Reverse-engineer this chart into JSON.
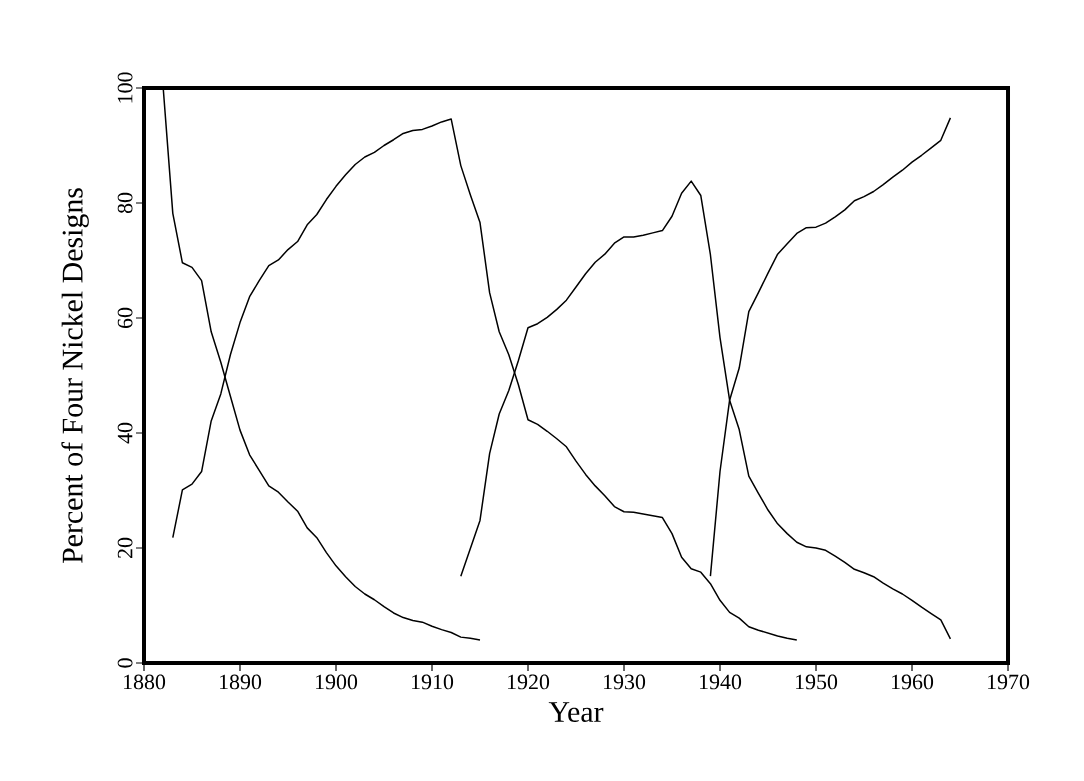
{
  "chart_data": {
    "type": "line",
    "xlabel": "Year",
    "ylabel": "Percent of Four Nickel Designs",
    "xlim": [
      1880,
      1970
    ],
    "ylim": [
      0,
      100
    ],
    "xticks": [
      1880,
      1890,
      1900,
      1910,
      1920,
      1930,
      1940,
      1950,
      1960,
      1970
    ],
    "yticks": [
      0,
      20,
      40,
      60,
      80,
      100
    ],
    "marker": "none",
    "line_style": "solid",
    "series": [
      {
        "color": "#000000",
        "x": [
          1882,
          1883,
          1884,
          1885,
          1886,
          1887,
          1888,
          1889,
          1890,
          1891,
          1892,
          1893,
          1894,
          1895,
          1896,
          1897,
          1898,
          1899,
          1900,
          1901,
          1902,
          1903,
          1904,
          1905,
          1906,
          1907,
          1908,
          1909,
          1910,
          1911,
          1912,
          1913,
          1914,
          1915
        ],
        "values": [
          100,
          78.2,
          69.6,
          68.8,
          66.5,
          57.6,
          52.3,
          46.4,
          40.5,
          36.2,
          33.5,
          30.8,
          29.7,
          28.0,
          26.4,
          23.5,
          21.8,
          19.2,
          16.9,
          15.0,
          13.3,
          12.0,
          11.0,
          9.8,
          8.7,
          7.9,
          7.4,
          7.1,
          6.4,
          5.8,
          5.3,
          4.5,
          4.3,
          4.0
        ]
      },
      {
        "color": "#000000",
        "x": [
          1883,
          1884,
          1885,
          1886,
          1887,
          1888,
          1889,
          1890,
          1891,
          1892,
          1893,
          1894,
          1895,
          1896,
          1897,
          1898,
          1899,
          1900,
          1901,
          1902,
          1903,
          1904,
          1905,
          1906,
          1907,
          1908,
          1909,
          1910,
          1911,
          1912,
          1913,
          1914,
          1915,
          1916,
          1917,
          1918,
          1919,
          1920,
          1921,
          1922,
          1923,
          1924,
          1925,
          1926,
          1927,
          1928,
          1929,
          1930,
          1931,
          1932,
          1933,
          1934,
          1935,
          1936,
          1937,
          1938,
          1939,
          1940,
          1941,
          1942,
          1943,
          1944,
          1945,
          1946,
          1947,
          1948
        ],
        "values": [
          21.8,
          30.1,
          31.1,
          33.3,
          42.1,
          46.8,
          53.6,
          59.2,
          63.7,
          66.5,
          69.1,
          70.1,
          71.9,
          73.3,
          76.2,
          78.0,
          80.6,
          82.9,
          84.9,
          86.7,
          88.0,
          88.8,
          90.0,
          91.0,
          92.1,
          92.6,
          92.8,
          93.4,
          94.1,
          94.6,
          86.5,
          81.4,
          76.6,
          64.4,
          57.6,
          53.6,
          48.4,
          42.3,
          41.5,
          40.3,
          39.0,
          37.6,
          35.1,
          32.8,
          30.8,
          29.1,
          27.2,
          26.3,
          26.2,
          25.9,
          25.6,
          25.3,
          22.5,
          18.4,
          16.4,
          15.8,
          13.8,
          10.9,
          8.8,
          7.8,
          6.3,
          5.7,
          5.2,
          4.7,
          4.3,
          4.0
        ]
      },
      {
        "color": "#000000",
        "x": [
          1913,
          1915,
          1916,
          1917,
          1918,
          1919,
          1920,
          1921,
          1922,
          1923,
          1924,
          1925,
          1926,
          1927,
          1928,
          1929,
          1930,
          1931,
          1932,
          1933,
          1934,
          1935,
          1936,
          1937,
          1938,
          1939,
          1940,
          1941,
          1942,
          1943,
          1944,
          1945,
          1946,
          1947,
          1948,
          1949,
          1950,
          1951,
          1952,
          1953,
          1954,
          1955,
          1956,
          1957,
          1958,
          1959,
          1960,
          1961,
          1962,
          1963,
          1964
        ],
        "values": [
          15.1,
          24.8,
          36.4,
          43.3,
          47.4,
          52.6,
          58.3,
          59.0,
          60.1,
          61.5,
          63.1,
          65.4,
          67.7,
          69.7,
          71.1,
          73.0,
          74.1,
          74.1,
          74.4,
          74.8,
          75.2,
          77.7,
          81.7,
          83.8,
          81.3,
          71.0,
          56.6,
          45.7,
          40.6,
          32.5,
          29.5,
          26.6,
          24.2,
          22.5,
          21.0,
          20.2,
          20.0,
          19.6,
          18.6,
          17.5,
          16.3,
          15.7,
          15.0,
          13.9,
          12.9,
          12.0,
          10.9,
          9.7,
          8.6,
          7.5,
          4.2
        ]
      },
      {
        "color": "#000000",
        "x": [
          1939,
          1940,
          1941,
          1942,
          1943,
          1944,
          1945,
          1946,
          1947,
          1948,
          1949,
          1950,
          1951,
          1952,
          1953,
          1954,
          1955,
          1956,
          1957,
          1958,
          1959,
          1960,
          1961,
          1962,
          1963,
          1964
        ],
        "values": [
          15.1,
          33.3,
          45.7,
          51.3,
          61.1,
          64.4,
          67.8,
          71.1,
          72.9,
          74.7,
          75.7,
          75.8,
          76.5,
          77.6,
          78.8,
          80.4,
          81.1,
          82.0,
          83.2,
          84.5,
          85.7,
          87.1,
          88.3,
          89.6,
          90.9,
          94.8
        ]
      }
    ]
  }
}
